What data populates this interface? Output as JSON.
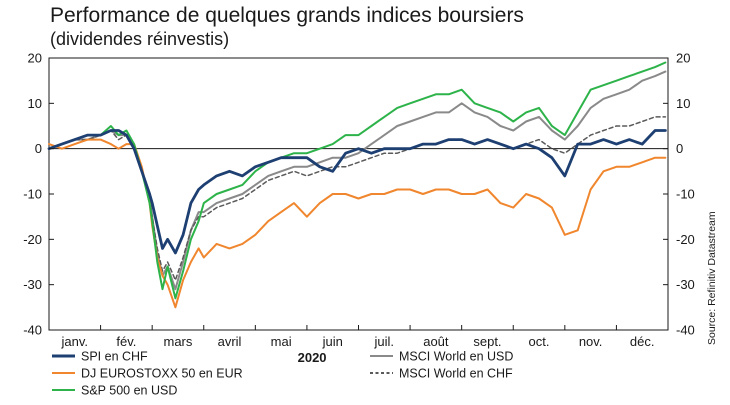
{
  "title": "Performance de quelques grands indices boursiers",
  "subtitle": "(dividendes réinvestis)",
  "source": "Source: Refinitiv Datastream",
  "chart_data": {
    "type": "line",
    "title": "Performance de quelques grands indices boursiers",
    "subtitle": "(dividendes réinvestis)",
    "xlabel": "2020",
    "ylabel": "",
    "ylim": [
      -40,
      20
    ],
    "yticks": [
      "20",
      "10",
      "0",
      "-10",
      "-20",
      "-30",
      "-40"
    ],
    "months": [
      "janv.",
      "fév.",
      "mars",
      "avril",
      "mai",
      "juin",
      "juil.",
      "août",
      "sept.",
      "oct.",
      "nov.",
      "déc."
    ],
    "grid": false,
    "zero_line": true,
    "legend_position": "bottom",
    "x": [
      0,
      0.25,
      0.5,
      0.75,
      1,
      1.2,
      1.35,
      1.5,
      1.65,
      1.8,
      1.95,
      2,
      2.1,
      2.2,
      2.3,
      2.45,
      2.6,
      2.75,
      2.9,
      3,
      3.25,
      3.5,
      3.75,
      4,
      4.25,
      4.5,
      4.75,
      5,
      5.25,
      5.5,
      5.75,
      6,
      6.25,
      6.5,
      6.75,
      7,
      7.25,
      7.5,
      7.75,
      8,
      8.25,
      8.5,
      8.75,
      9,
      9.25,
      9.5,
      9.75,
      10,
      10.25,
      10.5,
      10.75,
      11,
      11.25,
      11.5,
      11.75,
      11.95
    ],
    "series": [
      {
        "name": "SPI en CHF",
        "color": "#1d3f72",
        "dash": "",
        "values": [
          0,
          1,
          2,
          3,
          3,
          4,
          4,
          3,
          0,
          -5,
          -10,
          -12,
          -17,
          -22,
          -20,
          -23,
          -19,
          -12,
          -9,
          -8,
          -6,
          -5,
          -6,
          -4,
          -3,
          -2,
          -2,
          -2,
          -4,
          -5,
          -1,
          0,
          -1,
          0,
          0,
          0,
          1,
          1,
          2,
          2,
          1,
          2,
          1,
          0,
          1,
          0,
          -2,
          -6,
          1,
          1,
          2,
          1,
          2,
          1,
          4,
          4
        ]
      },
      {
        "name": "DJ EUROSTOXX 50 en EUR",
        "color": "#f0862d",
        "dash": "",
        "values": [
          1,
          0,
          1,
          2,
          2,
          1,
          0,
          1,
          1,
          -4,
          -12,
          -17,
          -24,
          -28,
          -30,
          -35,
          -29,
          -25,
          -22,
          -24,
          -21,
          -22,
          -21,
          -19,
          -16,
          -14,
          -12,
          -15,
          -12,
          -10,
          -10,
          -11,
          -10,
          -10,
          -9,
          -9,
          -10,
          -9,
          -9,
          -10,
          -10,
          -9,
          -12,
          -13,
          -10,
          -11,
          -13,
          -19,
          -18,
          -9,
          -5,
          -4,
          -4,
          -3,
          -2,
          -2
        ]
      },
      {
        "name": "S&P 500 en USD",
        "color": "#2db34a",
        "dash": "",
        "values": [
          0,
          1,
          2,
          3,
          3,
          5,
          3,
          4,
          1,
          -5,
          -12,
          -16,
          -25,
          -31,
          -26,
          -33,
          -27,
          -20,
          -16,
          -12,
          -10,
          -9,
          -8,
          -5,
          -3,
          -2,
          -1,
          -1,
          0,
          1,
          3,
          3,
          5,
          7,
          9,
          10,
          11,
          12,
          12,
          13,
          10,
          9,
          8,
          6,
          8,
          9,
          5,
          3,
          8,
          13,
          14,
          15,
          16,
          17,
          18,
          19
        ]
      },
      {
        "name": "MSCI World en USD",
        "color": "#8a8a8a",
        "dash": "",
        "values": [
          0,
          1,
          2,
          2,
          3,
          4,
          3,
          3,
          0,
          -5,
          -11,
          -15,
          -23,
          -28,
          -26,
          -31,
          -25,
          -18,
          -14,
          -14,
          -12,
          -11,
          -10,
          -8,
          -6,
          -5,
          -4,
          -4,
          -3,
          -2,
          -2,
          -1,
          1,
          3,
          5,
          6,
          7,
          8,
          8,
          10,
          8,
          7,
          5,
          4,
          6,
          7,
          4,
          2,
          5,
          9,
          11,
          12,
          13,
          15,
          16,
          17
        ]
      },
      {
        "name": "MSCI World en CHF",
        "color": "#5a5a5a",
        "dash": "4 3",
        "values": [
          0,
          1,
          2,
          2,
          3,
          4,
          2,
          3,
          0,
          -5,
          -11,
          -15,
          -22,
          -27,
          -25,
          -29,
          -24,
          -18,
          -15,
          -15,
          -13,
          -12,
          -11,
          -9,
          -7,
          -6,
          -5,
          -6,
          -5,
          -4,
          -4,
          -3,
          -2,
          -1,
          -1,
          0,
          1,
          1,
          2,
          2,
          1,
          2,
          1,
          0,
          1,
          2,
          0,
          -1,
          1,
          3,
          4,
          5,
          5,
          6,
          7,
          7
        ]
      }
    ]
  }
}
